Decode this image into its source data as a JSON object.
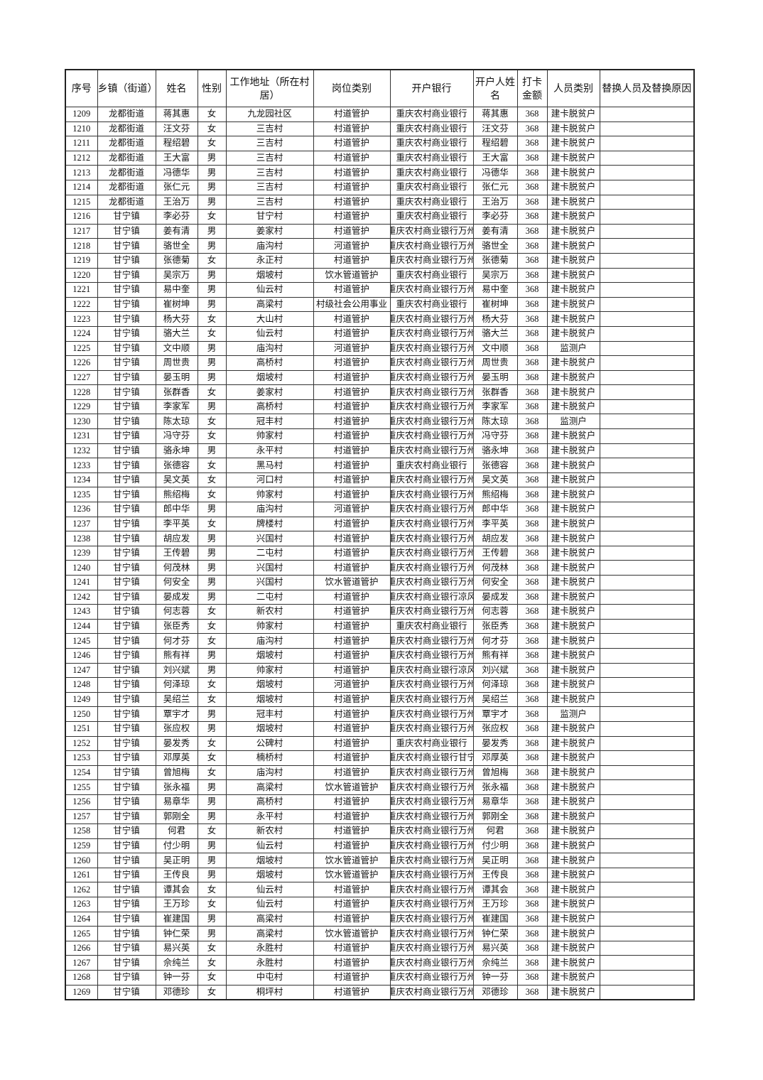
{
  "table": {
    "headers": [
      "序号",
      "乡镇（街道）",
      "姓名",
      "性别",
      "工作地址（所在村居）",
      "岗位类别",
      "开户银行",
      "开户人姓名",
      "打卡金额",
      "人员类别",
      "替换人员及替换原因"
    ],
    "rows": [
      [
        "1209",
        "龙都街道",
        "蒋其惠",
        "女",
        "九龙园社区",
        "村道管护",
        "重庆农村商业银行",
        "蒋其惠",
        "368",
        "建卡脱贫户",
        ""
      ],
      [
        "1210",
        "龙都街道",
        "汪文芬",
        "女",
        "三吉村",
        "村道管护",
        "重庆农村商业银行",
        "汪文芬",
        "368",
        "建卡脱贫户",
        ""
      ],
      [
        "1211",
        "龙都街道",
        "程绍碧",
        "女",
        "三吉村",
        "村道管护",
        "重庆农村商业银行",
        "程绍碧",
        "368",
        "建卡脱贫户",
        ""
      ],
      [
        "1212",
        "龙都街道",
        "王大富",
        "男",
        "三吉村",
        "村道管护",
        "重庆农村商业银行",
        "王大富",
        "368",
        "建卡脱贫户",
        ""
      ],
      [
        "1213",
        "龙都街道",
        "冯德华",
        "男",
        "三吉村",
        "村道管护",
        "重庆农村商业银行",
        "冯德华",
        "368",
        "建卡脱贫户",
        ""
      ],
      [
        "1214",
        "龙都街道",
        "张仁元",
        "男",
        "三吉村",
        "村道管护",
        "重庆农村商业银行",
        "张仁元",
        "368",
        "建卡脱贫户",
        ""
      ],
      [
        "1215",
        "龙都街道",
        "王治万",
        "男",
        "三吉村",
        "村道管护",
        "重庆农村商业银行",
        "王治万",
        "368",
        "建卡脱贫户",
        ""
      ],
      [
        "1216",
        "甘宁镇",
        "李必芬",
        "女",
        "甘宁村",
        "村道管护",
        "重庆农村商业银行",
        "李必芬",
        "368",
        "建卡脱贫户",
        ""
      ],
      [
        "1217",
        "甘宁镇",
        "姜有清",
        "男",
        "姜家村",
        "村道管护",
        "重庆农村商业银行万州",
        "姜有清",
        "368",
        "建卡脱贫户",
        ""
      ],
      [
        "1218",
        "甘宁镇",
        "骆世全",
        "男",
        "庙沟村",
        "河道管护",
        "重庆农村商业银行万州",
        "骆世全",
        "368",
        "建卡脱贫户",
        ""
      ],
      [
        "1219",
        "甘宁镇",
        "张德菊",
        "女",
        "永正村",
        "村道管护",
        "重庆农村商业银行万州",
        "张德菊",
        "368",
        "建卡脱贫户",
        ""
      ],
      [
        "1220",
        "甘宁镇",
        "吴宗万",
        "男",
        "烟坡村",
        "饮水管道管护",
        "重庆农村商业银行",
        "吴宗万",
        "368",
        "建卡脱贫户",
        ""
      ],
      [
        "1221",
        "甘宁镇",
        "易中奎",
        "男",
        "仙云村",
        "村道管护",
        "重庆农村商业银行万州",
        "易中奎",
        "368",
        "建卡脱贫户",
        ""
      ],
      [
        "1222",
        "甘宁镇",
        "崔树坤",
        "男",
        "高梁村",
        "村级社会公用事业",
        "重庆农村商业银行",
        "崔树坤",
        "368",
        "建卡脱贫户",
        ""
      ],
      [
        "1223",
        "甘宁镇",
        "杨大芬",
        "女",
        "大山村",
        "村道管护",
        "重庆农村商业银行万州",
        "杨大芬",
        "368",
        "建卡脱贫户",
        ""
      ],
      [
        "1224",
        "甘宁镇",
        "骆大兰",
        "女",
        "仙云村",
        "村道管护",
        "重庆农村商业银行万州",
        "骆大兰",
        "368",
        "建卡脱贫户",
        ""
      ],
      [
        "1225",
        "甘宁镇",
        "文中顺",
        "男",
        "庙沟村",
        "河道管护",
        "重庆农村商业银行万州",
        "文中顺",
        "368",
        "监测户",
        ""
      ],
      [
        "1226",
        "甘宁镇",
        "周世贵",
        "男",
        "高桥村",
        "村道管护",
        "重庆农村商业银行万州",
        "周世贵",
        "368",
        "建卡脱贫户",
        ""
      ],
      [
        "1227",
        "甘宁镇",
        "晏玉明",
        "男",
        "烟坡村",
        "村道管护",
        "重庆农村商业银行万州",
        "晏玉明",
        "368",
        "建卡脱贫户",
        ""
      ],
      [
        "1228",
        "甘宁镇",
        "张群香",
        "女",
        "姜家村",
        "村道管护",
        "重庆农村商业银行万州",
        "张群香",
        "368",
        "建卡脱贫户",
        ""
      ],
      [
        "1229",
        "甘宁镇",
        "李家军",
        "男",
        "高桥村",
        "村道管护",
        "重庆农村商业银行万州",
        "李家军",
        "368",
        "建卡脱贫户",
        ""
      ],
      [
        "1230",
        "甘宁镇",
        "陈太琼",
        "女",
        "冠丰村",
        "村道管护",
        "重庆农村商业银行万州",
        "陈太琼",
        "368",
        "监测户",
        ""
      ],
      [
        "1231",
        "甘宁镇",
        "冯守芬",
        "女",
        "帅家村",
        "村道管护",
        "重庆农村商业银行万州",
        "冯守芬",
        "368",
        "建卡脱贫户",
        ""
      ],
      [
        "1232",
        "甘宁镇",
        "骆永坤",
        "男",
        "永平村",
        "村道管护",
        "重庆农村商业银行万州",
        "骆永坤",
        "368",
        "建卡脱贫户",
        ""
      ],
      [
        "1233",
        "甘宁镇",
        "张德容",
        "女",
        "黑马村",
        "村道管护",
        "重庆农村商业银行",
        "张德容",
        "368",
        "建卡脱贫户",
        ""
      ],
      [
        "1234",
        "甘宁镇",
        "吴文英",
        "女",
        "河口村",
        "村道管护",
        "重庆农村商业银行万州",
        "吴文英",
        "368",
        "建卡脱贫户",
        ""
      ],
      [
        "1235",
        "甘宁镇",
        "熊绍梅",
        "女",
        "帅家村",
        "村道管护",
        "重庆农村商业银行万州",
        "熊绍梅",
        "368",
        "建卡脱贫户",
        ""
      ],
      [
        "1236",
        "甘宁镇",
        "郎中华",
        "男",
        "庙沟村",
        "河道管护",
        "重庆农村商业银行万州",
        "郎中华",
        "368",
        "建卡脱贫户",
        ""
      ],
      [
        "1237",
        "甘宁镇",
        "李平英",
        "女",
        "牌楼村",
        "村道管护",
        "重庆农村商业银行万州",
        "李平英",
        "368",
        "建卡脱贫户",
        ""
      ],
      [
        "1238",
        "甘宁镇",
        "胡应发",
        "男",
        "兴国村",
        "村道管护",
        "重庆农村商业银行万州",
        "胡应发",
        "368",
        "建卡脱贫户",
        ""
      ],
      [
        "1239",
        "甘宁镇",
        "王传碧",
        "男",
        "二屯村",
        "村道管护",
        "重庆农村商业银行万州",
        "王传碧",
        "368",
        "建卡脱贫户",
        ""
      ],
      [
        "1240",
        "甘宁镇",
        "何茂林",
        "男",
        "兴国村",
        "村道管护",
        "重庆农村商业银行万州",
        "何茂林",
        "368",
        "建卡脱贫户",
        ""
      ],
      [
        "1241",
        "甘宁镇",
        "何安全",
        "男",
        "兴国村",
        "饮水管道管护",
        "重庆农村商业银行万州",
        "何安全",
        "368",
        "建卡脱贫户",
        ""
      ],
      [
        "1242",
        "甘宁镇",
        "晏成发",
        "男",
        "二屯村",
        "村道管护",
        "重庆农村商业银行凉风",
        "晏成发",
        "368",
        "建卡脱贫户",
        ""
      ],
      [
        "1243",
        "甘宁镇",
        "何志蓉",
        "女",
        "新农村",
        "村道管护",
        "重庆农村商业银行万州",
        "何志蓉",
        "368",
        "建卡脱贫户",
        ""
      ],
      [
        "1244",
        "甘宁镇",
        "张臣秀",
        "女",
        "帅家村",
        "村道管护",
        "重庆农村商业银行",
        "张臣秀",
        "368",
        "建卡脱贫户",
        ""
      ],
      [
        "1245",
        "甘宁镇",
        "何才芬",
        "女",
        "庙沟村",
        "村道管护",
        "重庆农村商业银行万州",
        "何才芬",
        "368",
        "建卡脱贫户",
        ""
      ],
      [
        "1246",
        "甘宁镇",
        "熊有祥",
        "男",
        "烟坡村",
        "村道管护",
        "重庆农村商业银行万州",
        "熊有祥",
        "368",
        "建卡脱贫户",
        ""
      ],
      [
        "1247",
        "甘宁镇",
        "刘兴斌",
        "男",
        "帅家村",
        "村道管护",
        "重庆农村商业银行凉风",
        "刘兴斌",
        "368",
        "建卡脱贫户",
        ""
      ],
      [
        "1248",
        "甘宁镇",
        "何泽琼",
        "女",
        "烟坡村",
        "河道管护",
        "重庆农村商业银行万州",
        "何泽琼",
        "368",
        "建卡脱贫户",
        ""
      ],
      [
        "1249",
        "甘宁镇",
        "吴绍兰",
        "女",
        "烟坡村",
        "村道管护",
        "重庆农村商业银行万州",
        "吴绍兰",
        "368",
        "建卡脱贫户",
        ""
      ],
      [
        "1250",
        "甘宁镇",
        "覃宇才",
        "男",
        "冠丰村",
        "村道管护",
        "重庆农村商业银行万州",
        "覃宇才",
        "368",
        "监测户",
        ""
      ],
      [
        "1251",
        "甘宁镇",
        "张应权",
        "男",
        "烟坡村",
        "村道管护",
        "重庆农村商业银行万州",
        "张应权",
        "368",
        "建卡脱贫户",
        ""
      ],
      [
        "1252",
        "甘宁镇",
        "晏发秀",
        "女",
        "公碑村",
        "村道管护",
        "重庆农村商业银行",
        "晏发秀",
        "368",
        "建卡脱贫户",
        ""
      ],
      [
        "1253",
        "甘宁镇",
        "邓厚英",
        "女",
        "楠桥村",
        "村道管护",
        "重庆农村商业银行甘宁",
        "邓厚英",
        "368",
        "建卡脱贫户",
        ""
      ],
      [
        "1254",
        "甘宁镇",
        "曾旭梅",
        "女",
        "庙沟村",
        "村道管护",
        "重庆农村商业银行万州",
        "曾旭梅",
        "368",
        "建卡脱贫户",
        ""
      ],
      [
        "1255",
        "甘宁镇",
        "张永福",
        "男",
        "高梁村",
        "饮水管道管护",
        "重庆农村商业银行万州",
        "张永福",
        "368",
        "建卡脱贫户",
        ""
      ],
      [
        "1256",
        "甘宁镇",
        "易章华",
        "男",
        "高桥村",
        "村道管护",
        "重庆农村商业银行万州",
        "易章华",
        "368",
        "建卡脱贫户",
        ""
      ],
      [
        "1257",
        "甘宁镇",
        "郭刚全",
        "男",
        "永平村",
        "村道管护",
        "重庆农村商业银行万州",
        "郭刚全",
        "368",
        "建卡脱贫户",
        ""
      ],
      [
        "1258",
        "甘宁镇",
        "何君",
        "女",
        "新农村",
        "村道管护",
        "重庆农村商业银行万州",
        "何君",
        "368",
        "建卡脱贫户",
        ""
      ],
      [
        "1259",
        "甘宁镇",
        "付少明",
        "男",
        "仙云村",
        "村道管护",
        "重庆农村商业银行万州",
        "付少明",
        "368",
        "建卡脱贫户",
        ""
      ],
      [
        "1260",
        "甘宁镇",
        "吴正明",
        "男",
        "烟坡村",
        "饮水管道管护",
        "重庆农村商业银行万州",
        "吴正明",
        "368",
        "建卡脱贫户",
        ""
      ],
      [
        "1261",
        "甘宁镇",
        "王传良",
        "男",
        "烟坡村",
        "饮水管道管护",
        "重庆农村商业银行万州",
        "王传良",
        "368",
        "建卡脱贫户",
        ""
      ],
      [
        "1262",
        "甘宁镇",
        "谭其会",
        "女",
        "仙云村",
        "村道管护",
        "重庆农村商业银行万州",
        "谭其会",
        "368",
        "建卡脱贫户",
        ""
      ],
      [
        "1263",
        "甘宁镇",
        "王万珍",
        "女",
        "仙云村",
        "村道管护",
        "重庆农村商业银行万州",
        "王万珍",
        "368",
        "建卡脱贫户",
        ""
      ],
      [
        "1264",
        "甘宁镇",
        "崔建国",
        "男",
        "高梁村",
        "村道管护",
        "重庆农村商业银行万州",
        "崔建国",
        "368",
        "建卡脱贫户",
        ""
      ],
      [
        "1265",
        "甘宁镇",
        "钟仁荣",
        "男",
        "高梁村",
        "饮水管道管护",
        "重庆农村商业银行万州",
        "钟仁荣",
        "368",
        "建卡脱贫户",
        ""
      ],
      [
        "1266",
        "甘宁镇",
        "易兴英",
        "女",
        "永胜村",
        "村道管护",
        "重庆农村商业银行万州",
        "易兴英",
        "368",
        "建卡脱贫户",
        ""
      ],
      [
        "1267",
        "甘宁镇",
        "佘纯兰",
        "女",
        "永胜村",
        "村道管护",
        "重庆农村商业银行万州",
        "佘纯兰",
        "368",
        "建卡脱贫户",
        ""
      ],
      [
        "1268",
        "甘宁镇",
        "钟一芬",
        "女",
        "中屯村",
        "村道管护",
        "重庆农村商业银行万州",
        "钟一芬",
        "368",
        "建卡脱贫户",
        ""
      ],
      [
        "1269",
        "甘宁镇",
        "邓德珍",
        "女",
        "桐坪村",
        "村道管护",
        "重庆农村商业银行万州",
        "邓德珍",
        "368",
        "建卡脱贫户",
        ""
      ]
    ]
  }
}
